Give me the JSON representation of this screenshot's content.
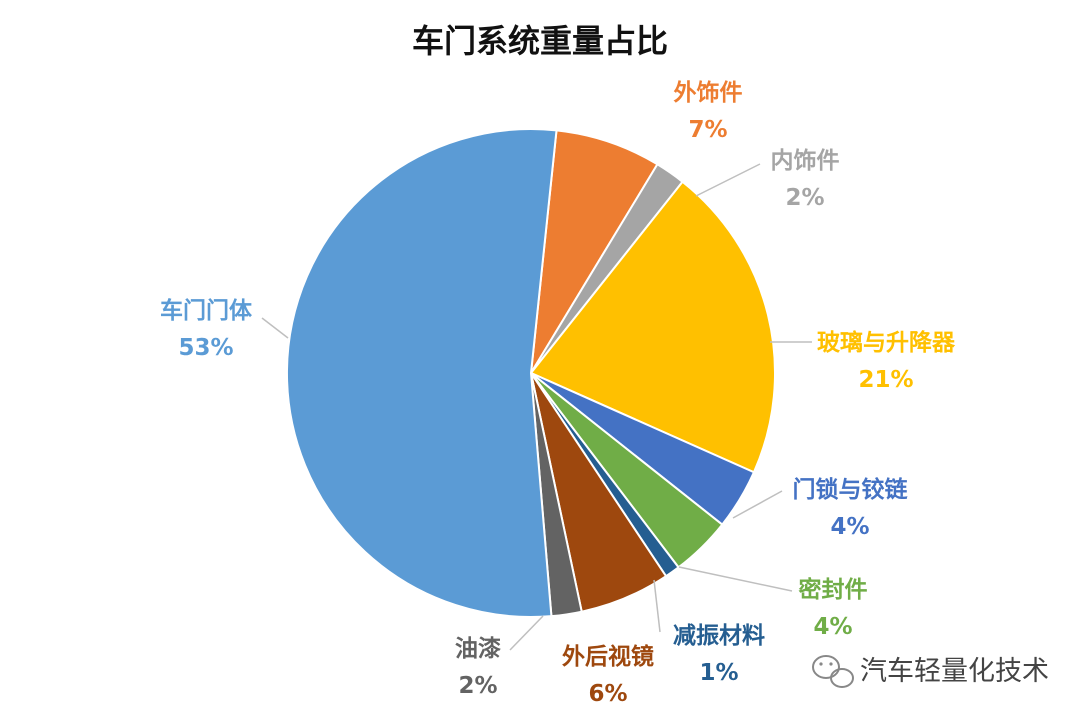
{
  "chart_data": {
    "type": "pie",
    "title": "车门系统重量占比",
    "start_angle_deg": 6,
    "direction": "clockwise",
    "slices": [
      {
        "name": "外饰件",
        "value": 7,
        "label": "7%",
        "color": "#ED7D31"
      },
      {
        "name": "内饰件",
        "value": 2,
        "label": "2%",
        "color": "#A5A5A5"
      },
      {
        "name": "玻璃与升降器",
        "value": 21,
        "label": "21%",
        "color": "#FFC000"
      },
      {
        "name": "门锁与铰链",
        "value": 4,
        "label": "4%",
        "color": "#4472C4"
      },
      {
        "name": "密封件",
        "value": 4,
        "label": "4%",
        "color": "#70AD47"
      },
      {
        "name": "减振材料",
        "value": 1,
        "label": "1%",
        "color": "#255E91"
      },
      {
        "name": "外后视镜",
        "value": 6,
        "label": "6%",
        "color": "#9E480E"
      },
      {
        "name": "油漆",
        "value": 2,
        "label": "2%",
        "color": "#636363"
      },
      {
        "name": "车门门体",
        "value": 53,
        "label": "53%",
        "color": "#5B9BD5"
      }
    ]
  },
  "watermark": {
    "text": "汽车轻量化技术",
    "icon": "wechat-icon"
  }
}
